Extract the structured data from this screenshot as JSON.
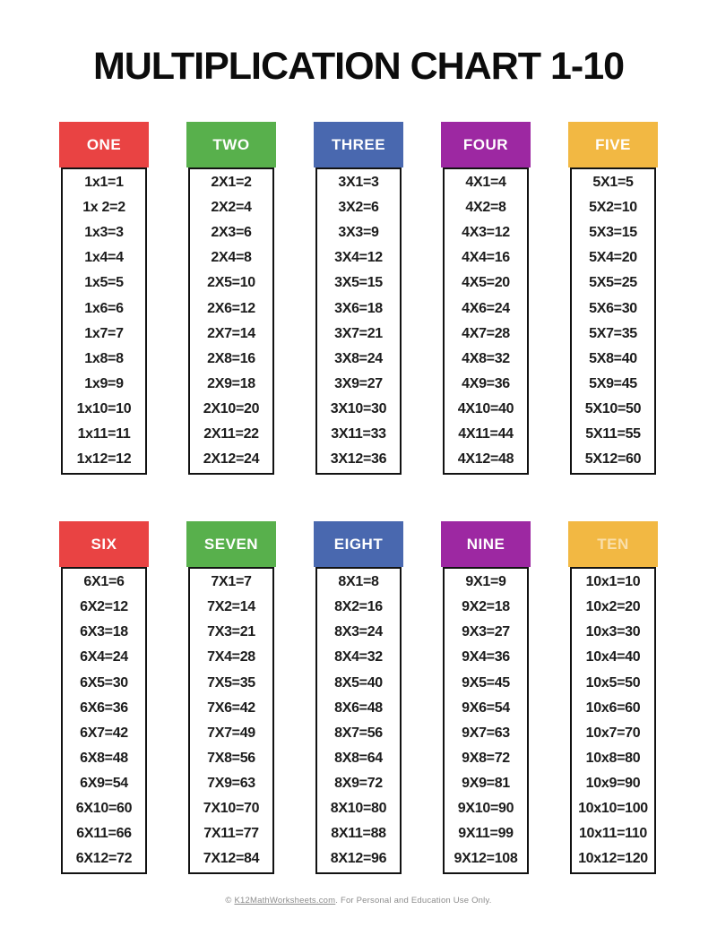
{
  "page": {
    "title": "MULTIPLICATION CHART 1-10",
    "footer": {
      "prefix": "© ",
      "link_text": "K12MathWorksheets.com",
      "suffix": ". For Personal and Education Use Only."
    }
  },
  "colors": {
    "red": "#e94343",
    "green": "#58b04c",
    "blue": "#4968af",
    "purple": "#9d28a2",
    "yellow": "#f2b843",
    "border": "#121212",
    "cell_text": "#1c1c1c",
    "footer_text": "#8c8c8c"
  },
  "tables": [
    {
      "id": "one",
      "label": "ONE",
      "color": "#e94343",
      "muted_label": false,
      "facts": [
        "1x1=1",
        "1x 2=2",
        "1x3=3",
        "1x4=4",
        "1x5=5",
        "1x6=6",
        "1x7=7",
        "1x8=8",
        "1x9=9",
        "1x10=10",
        "1x11=11",
        "1x12=12"
      ]
    },
    {
      "id": "two",
      "label": "TWO",
      "color": "#58b04c",
      "muted_label": false,
      "facts": [
        "2X1=2",
        "2X2=4",
        "2X3=6",
        "2X4=8",
        "2X5=10",
        "2X6=12",
        "2X7=14",
        "2X8=16",
        "2X9=18",
        "2X10=20",
        "2X11=22",
        "2X12=24"
      ]
    },
    {
      "id": "three",
      "label": "THREE",
      "color": "#4968af",
      "muted_label": false,
      "facts": [
        "3X1=3",
        "3X2=6",
        "3X3=9",
        "3X4=12",
        "3X5=15",
        "3X6=18",
        "3X7=21",
        "3X8=24",
        "3X9=27",
        "3X10=30",
        "3X11=33",
        "3X12=36"
      ]
    },
    {
      "id": "four",
      "label": "FOUR",
      "color": "#9d28a2",
      "muted_label": false,
      "facts": [
        "4X1=4",
        "4X2=8",
        "4X3=12",
        "4X4=16",
        "4X5=20",
        "4X6=24",
        "4X7=28",
        "4X8=32",
        "4X9=36",
        "4X10=40",
        "4X11=44",
        "4X12=48"
      ]
    },
    {
      "id": "five",
      "label": "FIVE",
      "color": "#f2b843",
      "muted_label": false,
      "facts": [
        "5X1=5",
        "5X2=10",
        "5X3=15",
        "5X4=20",
        "5X5=25",
        "5X6=30",
        "5X7=35",
        "5X8=40",
        "5X9=45",
        "5X10=50",
        "5X11=55",
        "5X12=60"
      ]
    },
    {
      "id": "six",
      "label": "SIX",
      "color": "#e94343",
      "muted_label": false,
      "facts": [
        "6X1=6",
        "6X2=12",
        "6X3=18",
        "6X4=24",
        "6X5=30",
        "6X6=36",
        "6X7=42",
        "6X8=48",
        "6X9=54",
        "6X10=60",
        "6X11=66",
        "6X12=72"
      ]
    },
    {
      "id": "seven",
      "label": "SEVEN",
      "color": "#58b04c",
      "muted_label": false,
      "facts": [
        "7X1=7",
        "7X2=14",
        "7X3=21",
        "7X4=28",
        "7X5=35",
        "7X6=42",
        "7X7=49",
        "7X8=56",
        "7X9=63",
        "7X10=70",
        "7X11=77",
        "7X12=84"
      ]
    },
    {
      "id": "eight",
      "label": "EIGHT",
      "color": "#4968af",
      "muted_label": false,
      "facts": [
        "8X1=8",
        "8X2=16",
        "8X3=24",
        "8X4=32",
        "8X5=40",
        "8X6=48",
        "8X7=56",
        "8X8=64",
        "8X9=72",
        "8X10=80",
        "8X11=88",
        "8X12=96"
      ]
    },
    {
      "id": "nine",
      "label": "NINE",
      "color": "#9d28a2",
      "muted_label": false,
      "facts": [
        "9X1=9",
        "9X2=18",
        "9X3=27",
        "9X4=36",
        "9X5=45",
        "9X6=54",
        "9X7=63",
        "9X8=72",
        "9X9=81",
        "9X10=90",
        "9X11=99",
        "9X12=108"
      ]
    },
    {
      "id": "ten",
      "label": "TEN",
      "color": "#f2b843",
      "muted_label": true,
      "facts": [
        "10x1=10",
        "10x2=20",
        "10x3=30",
        "10x4=40",
        "10x5=50",
        "10x6=60",
        "10x7=70",
        "10x8=80",
        "10x9=90",
        "10x10=100",
        "10x11=110",
        "10x12=120"
      ]
    }
  ]
}
